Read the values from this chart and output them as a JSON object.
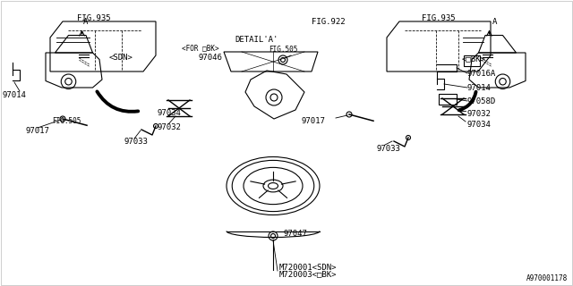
{
  "bg_color": "#ffffff",
  "line_color": "#000000",
  "lw": 0.8,
  "fs_main": 6.5,
  "fs_small": 5.5,
  "ref_code": "A970001178",
  "labels": {
    "M720001_SDN": "M720001<SDN>",
    "M720003_DBK": "M720003<□BK>",
    "97047": "97047",
    "SDN": "<SDN>",
    "DBK": "<□BK>",
    "97017": "97017",
    "97033": "97033",
    "97032": "97032",
    "97034": "97034",
    "97014": "97014",
    "FIG505": "FIG.505",
    "FIG935": "FIG.935",
    "97046": "97046",
    "FOR_DBK": "<FOR □BK>",
    "DETAIL_A": "DETAIL'A'",
    "FIG922": "FIG.922",
    "97058D": "97058D",
    "97016A": "97016A",
    "A_ref": "A"
  }
}
